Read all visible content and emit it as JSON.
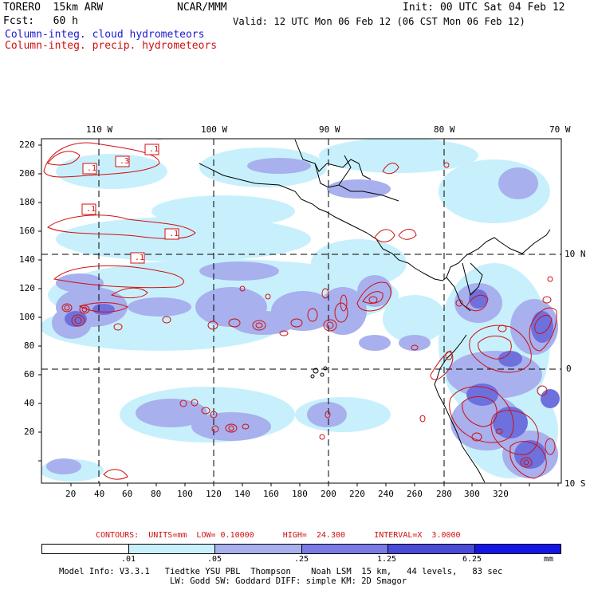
{
  "header": {
    "model": "TORERO  15km ARW",
    "org": "NCAR/MMM",
    "init": "Init: 00 UTC Sat 04 Feb 12",
    "fcst": "Fcst:   60 h",
    "valid": "Valid: 12 UTC Mon 06 Feb 12 (06 CST Mon 06 Feb 12)",
    "field1": "Column-integ. cloud hydrometeors",
    "field2": "Column-integ. precip. hydrometeors"
  },
  "map": {
    "lon_labels": [
      "110 W",
      "100 W",
      "90 W",
      "80 W",
      "70 W"
    ],
    "lat_labels": [
      "10 N",
      "0",
      "10 S"
    ],
    "y_ticks": [
      "220",
      "200",
      "180",
      "160",
      "140",
      "120",
      "100",
      "80",
      "60",
      "40",
      "20"
    ],
    "x_ticks": [
      "20",
      "40",
      "60",
      "80",
      "100",
      "120",
      "140",
      "160",
      "180",
      "200",
      "220",
      "240",
      "260",
      "280",
      "300",
      "320"
    ],
    "contour_labels": [
      ".1",
      ".1",
      ".3",
      ".1",
      ".1",
      ".1"
    ]
  },
  "contour_info": {
    "text": "CONTOURS:  UNITS=mm  LOW= 0.10000      HIGH=  24.300      INTERVAL=X  3.0000"
  },
  "colorbar": {
    "levels": [
      ".01",
      ".05",
      ".25",
      "1.25",
      "6.25"
    ],
    "units": "mm",
    "colors": [
      "#ffffff",
      "#c8f0fc",
      "#a8b0ee",
      "#7a7ae4",
      "#4a4ad8",
      "#1515e6"
    ]
  },
  "footer": {
    "line1": "Model Info: V3.3.1   Tiedtke YSU PBL  Thompson    Noah LSM  15 km,   44 levels,   83 sec",
    "line2": "LW: Godd SW: Goddard DIFF: simple KM: 2D Smagor"
  }
}
